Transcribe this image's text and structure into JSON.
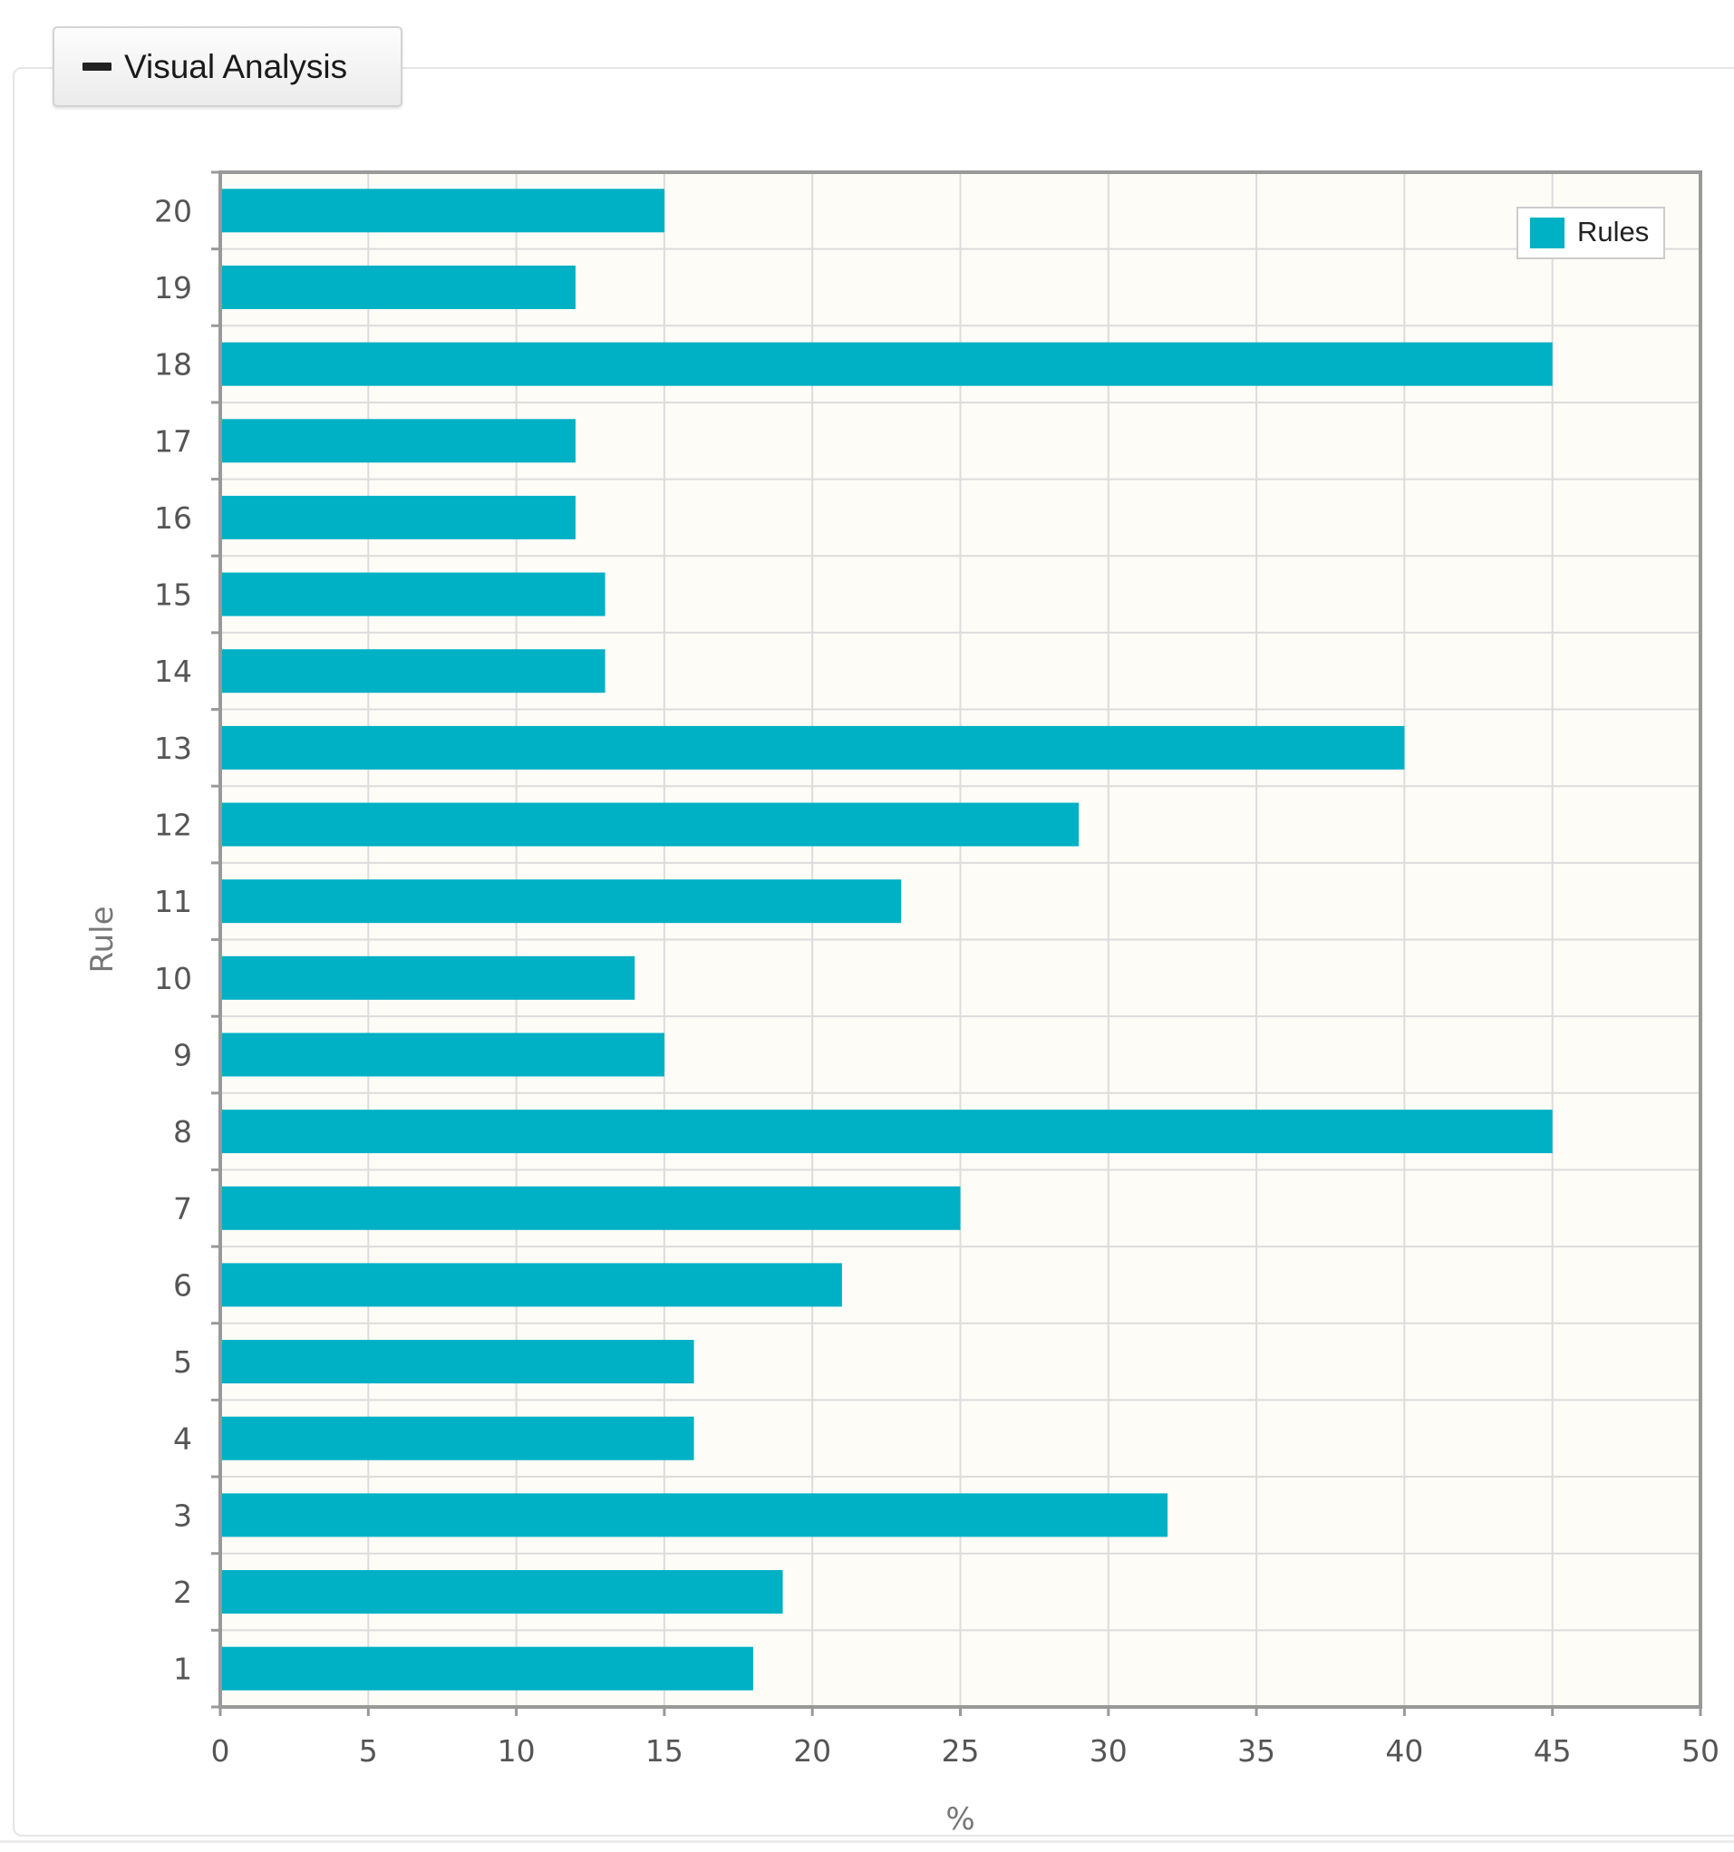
{
  "section": {
    "title": "Visual Analysis",
    "icon": "minus-icon"
  },
  "colors": {
    "bar": "#00b0c4",
    "plot_bg": "#fdfcf7",
    "grid": "#dcdcdc",
    "axis": "#999999"
  },
  "chart_data": {
    "type": "bar",
    "orientation": "horizontal",
    "title": "",
    "xlabel": "%",
    "ylabel": "Rule",
    "xlim": [
      0,
      50
    ],
    "x_ticks": [
      "0",
      "5",
      "10",
      "15",
      "20",
      "25",
      "30",
      "35",
      "40",
      "45",
      "50"
    ],
    "legend_position": "top-right",
    "categories": [
      "1",
      "2",
      "3",
      "4",
      "5",
      "6",
      "7",
      "8",
      "9",
      "10",
      "11",
      "12",
      "13",
      "14",
      "15",
      "16",
      "17",
      "18",
      "19",
      "20"
    ],
    "series": [
      {
        "name": "Rules",
        "values": [
          18,
          19,
          32,
          16,
          16,
          21,
          25,
          45,
          15,
          14,
          23,
          29,
          40,
          13,
          13,
          12,
          12,
          45,
          12,
          15
        ]
      }
    ]
  }
}
